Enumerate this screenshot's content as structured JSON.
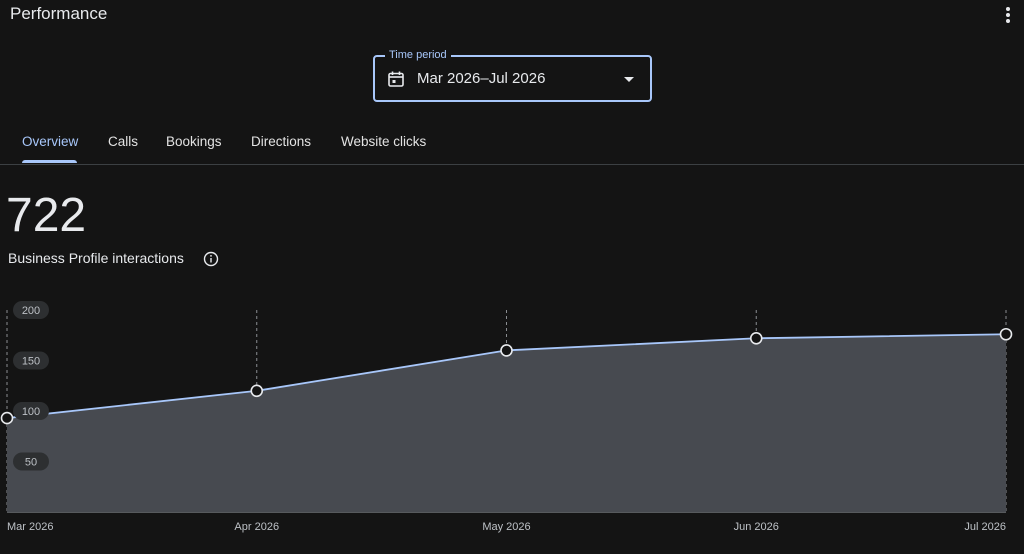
{
  "header": {
    "title": "Performance",
    "menu_icon": "more-vert-icon"
  },
  "time_period": {
    "label": "Time period",
    "value": "Mar 2026–Jul 2026",
    "icon": "calendar-icon",
    "accent": "#a8c7fa"
  },
  "tabs": [
    {
      "label": "Overview",
      "active": true
    },
    {
      "label": "Calls",
      "active": false
    },
    {
      "label": "Bookings",
      "active": false
    },
    {
      "label": "Directions",
      "active": false
    },
    {
      "label": "Website clicks",
      "active": false
    }
  ],
  "summary": {
    "total": "722",
    "label": "Business Profile interactions",
    "info_icon": "info-icon"
  },
  "chart_data": {
    "type": "area",
    "x": [
      "Mar 2026",
      "Apr 2026",
      "May 2026",
      "Jun 2026",
      "Jul 2026"
    ],
    "values": [
      93,
      120,
      160,
      172,
      176
    ],
    "ylim": [
      0,
      200
    ],
    "yticks": [
      50,
      100,
      150,
      200
    ],
    "grid": "vertical-dashed",
    "line_color": "#a8c7fa",
    "fill_color": "#474a50"
  }
}
